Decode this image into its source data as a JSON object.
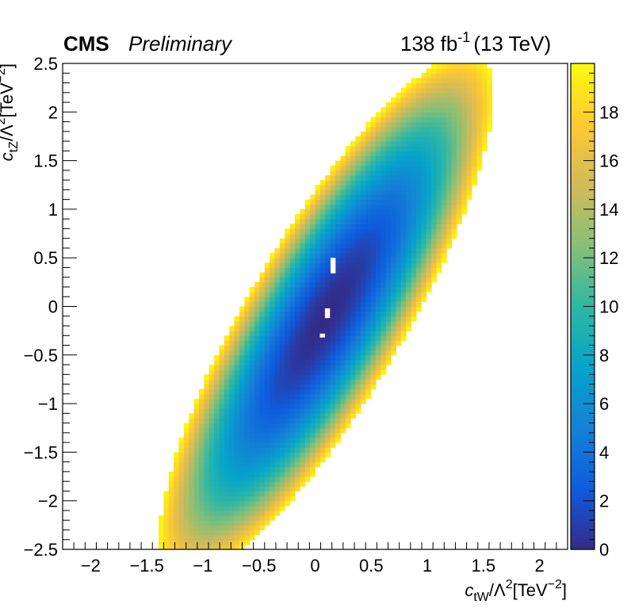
{
  "header": {
    "experiment": "CMS",
    "status": "Preliminary",
    "lumi_value": "138 fb",
    "lumi_exp": "-1",
    "energy": "(13 TeV)"
  },
  "chart_data": {
    "type": "heatmap",
    "xlabel": {
      "main": "c",
      "sub": "tW",
      "rest": "/Λ",
      "sup": "2",
      "unit": "[TeV",
      "unit_sup": "−2",
      "close": "]"
    },
    "ylabel": {
      "main": "c",
      "sub": "tZ",
      "rest": "/Λ",
      "sup": "2",
      "unit": "[TeV",
      "unit_sup": "−2",
      "close": "]"
    },
    "xlim": [
      -2.25,
      2.25
    ],
    "ylim": [
      -2.5,
      2.5
    ],
    "x_ticks": [
      -2,
      -1.5,
      -1,
      -0.5,
      0,
      0.5,
      1,
      1.5,
      2
    ],
    "x_tick_labels": [
      "−2",
      "−1.5",
      "−1",
      "−0.5",
      "0",
      "0.5",
      "1",
      "1.5",
      "2"
    ],
    "y_ticks": [
      -2.5,
      -2,
      -1.5,
      -1,
      -0.5,
      0,
      0.5,
      1,
      1.5,
      2,
      2.5
    ],
    "y_tick_labels": [
      "−2.5",
      "−2",
      "−1.5",
      "−1",
      "−0.5",
      "0",
      "0.5",
      "1",
      "1.5",
      "2",
      "2.5"
    ],
    "z_range": [
      0,
      20
    ],
    "z_ticks": [
      0,
      2,
      4,
      6,
      8,
      10,
      12,
      14,
      16,
      18
    ],
    "z_tick_labels": [
      "0",
      "2",
      "4",
      "6",
      "8",
      "10",
      "12",
      "14",
      "16",
      "18"
    ],
    "z_max_shown": 19.9,
    "minimum": [
      0.1,
      -0.1
    ],
    "ellipse": {
      "major_direction": [
        0.5,
        1
      ],
      "major_halfwidth": 3.0,
      "minor_halfwidth": 0.72
    },
    "palette": [
      "#352a87",
      "#0f5cdd",
      "#1481d6",
      "#06a4ca",
      "#2eb7a4",
      "#87bf77",
      "#d1bb59",
      "#fec832",
      "#f9fb0e"
    ]
  }
}
